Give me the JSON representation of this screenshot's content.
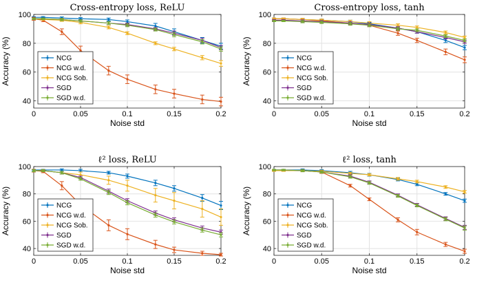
{
  "series_styles": [
    {
      "name": "NCG",
      "color": "#0072BD"
    },
    {
      "name": "NCG w.d.",
      "color": "#D95319"
    },
    {
      "name": "NCG Sob.",
      "color": "#EDB120"
    },
    {
      "name": "SGD",
      "color": "#7E2F8E"
    },
    {
      "name": "SGD w.d.",
      "color": "#77AC30"
    }
  ],
  "chart_data": [
    {
      "type": "line",
      "title": "Cross-entropy loss, ReLU",
      "xlabel": "Noise std",
      "ylabel": "Accuracy (%)",
      "xlim": [
        0,
        0.2
      ],
      "ylim": [
        35,
        100
      ],
      "xticks": [
        0,
        0.05,
        0.1,
        0.15,
        0.2
      ],
      "xtick_labels": [
        "0",
        "0.05",
        "0.1",
        "0.15",
        "0.2"
      ],
      "yticks": [
        40,
        60,
        80,
        100
      ],
      "ytick_labels": [
        "40",
        "60",
        "80",
        "100"
      ],
      "grid": true,
      "legend": "bottom-left",
      "x": [
        0,
        0.01,
        0.03,
        0.05,
        0.08,
        0.1,
        0.13,
        0.15,
        0.18,
        0.2
      ],
      "series": [
        {
          "name": "NCG",
          "values": [
            98,
            98,
            97.5,
            97,
            96.5,
            95,
            92,
            88,
            82,
            78
          ],
          "err": [
            0.5,
            0.5,
            0.8,
            0.8,
            1,
            1.2,
            1.8,
            2,
            2,
            2
          ]
        },
        {
          "name": "NCG w.d.",
          "values": [
            97,
            96,
            88,
            75,
            61,
            55,
            48,
            45,
            41,
            39.5
          ],
          "err": [
            1,
            1,
            2,
            3,
            3,
            3,
            3,
            3,
            3,
            3
          ]
        },
        {
          "name": "NCG Sob.",
          "values": [
            97,
            96.5,
            96,
            94.5,
            91,
            87,
            80,
            76,
            70,
            66
          ],
          "err": [
            0.5,
            0.5,
            0.8,
            1,
            1,
            1,
            1,
            1.2,
            1.5,
            2
          ]
        },
        {
          "name": "SGD",
          "values": [
            97,
            97,
            96.5,
            95.5,
            94,
            93,
            90,
            87,
            82,
            77
          ],
          "err": [
            0.5,
            0.5,
            0.8,
            0.8,
            1,
            1,
            1,
            1.5,
            1.5,
            1.5
          ]
        },
        {
          "name": "SGD w.d.",
          "values": [
            97,
            97,
            96.5,
            95.5,
            94,
            92.5,
            89.5,
            86,
            81,
            76
          ],
          "err": [
            0.5,
            0.5,
            0.8,
            0.8,
            1,
            1,
            1,
            1.5,
            1.5,
            1.5
          ]
        }
      ]
    },
    {
      "type": "line",
      "title": "Cross-entropy loss, tanh",
      "xlabel": "Noise std",
      "ylabel": "Accuracy (%)",
      "xlim": [
        0,
        0.2
      ],
      "ylim": [
        35,
        100
      ],
      "xticks": [
        0,
        0.05,
        0.1,
        0.15,
        0.2
      ],
      "xtick_labels": [
        "0",
        "0.05",
        "0.1",
        "0.15",
        "0.2"
      ],
      "yticks": [
        40,
        60,
        80,
        100
      ],
      "ytick_labels": [
        "40",
        "60",
        "80",
        "100"
      ],
      "grid": true,
      "legend": "bottom-left",
      "x": [
        0,
        0.01,
        0.03,
        0.05,
        0.08,
        0.1,
        0.13,
        0.15,
        0.18,
        0.2
      ],
      "series": [
        {
          "name": "NCG",
          "values": [
            97,
            97,
            96.5,
            96,
            95,
            93.5,
            90.5,
            88,
            82,
            77
          ],
          "err": [
            0.5,
            0.5,
            0.8,
            0.8,
            1,
            1,
            1,
            1,
            1.5,
            1.5
          ]
        },
        {
          "name": "NCG w.d.",
          "values": [
            97,
            97,
            96.5,
            95.5,
            94,
            92.5,
            87,
            82,
            74,
            68.5
          ],
          "err": [
            0.5,
            0.5,
            0.8,
            0.8,
            1,
            1,
            1.5,
            1.5,
            2,
            2
          ]
        },
        {
          "name": "NCG Sob.",
          "values": [
            97,
            97,
            96.5,
            96,
            95,
            94,
            92.5,
            91,
            87.5,
            84
          ],
          "err": [
            0.5,
            0.5,
            0.8,
            0.8,
            1,
            1,
            1,
            1,
            1,
            1
          ]
        },
        {
          "name": "SGD",
          "values": [
            96,
            96,
            95.5,
            95,
            94,
            93,
            90.5,
            88,
            84,
            81
          ],
          "err": [
            0.5,
            0.5,
            0.8,
            0.8,
            1,
            1,
            1,
            1,
            1,
            1
          ]
        },
        {
          "name": "SGD w.d.",
          "values": [
            95.5,
            95.5,
            95,
            94.5,
            93.5,
            92.5,
            90,
            89,
            85,
            82
          ],
          "err": [
            0.5,
            0.5,
            0.8,
            0.8,
            1,
            1,
            1,
            1,
            1,
            1
          ]
        }
      ]
    },
    {
      "type": "line",
      "title": "ℓ² loss, ReLU",
      "xlabel": "Noise std",
      "ylabel": "Accuracy (%)",
      "xlim": [
        0,
        0.2
      ],
      "ylim": [
        35,
        100
      ],
      "xticks": [
        0,
        0.05,
        0.1,
        0.15,
        0.2
      ],
      "xtick_labels": [
        "0",
        "0.05",
        "0.1",
        "0.15",
        "0.2"
      ],
      "yticks": [
        40,
        60,
        80,
        100
      ],
      "ytick_labels": [
        "40",
        "60",
        "80",
        "100"
      ],
      "grid": true,
      "legend": "bottom-left",
      "x": [
        0,
        0.01,
        0.03,
        0.05,
        0.08,
        0.1,
        0.13,
        0.15,
        0.18,
        0.2
      ],
      "series": [
        {
          "name": "NCG",
          "values": [
            97.5,
            97.5,
            97.5,
            97,
            95.5,
            93,
            88,
            84,
            77,
            71.5
          ],
          "err": [
            0.5,
            0.5,
            0.8,
            1,
            1,
            1.5,
            2,
            2,
            2.5,
            3
          ]
        },
        {
          "name": "NCG w.d.",
          "values": [
            97,
            96.5,
            86,
            72,
            57,
            50.5,
            43,
            39,
            36.5,
            35.5
          ],
          "err": [
            1,
            1,
            3,
            4,
            4,
            4,
            3,
            2,
            1.5,
            1
          ]
        },
        {
          "name": "NCG Sob.",
          "values": [
            97,
            97,
            95.5,
            94,
            90,
            86,
            79,
            75,
            69,
            63
          ],
          "err": [
            0.8,
            0.8,
            1,
            2,
            3,
            4,
            5,
            6,
            6,
            6
          ]
        },
        {
          "name": "SGD",
          "values": [
            97,
            97,
            95.5,
            92,
            82,
            75,
            66,
            61,
            55,
            52
          ],
          "err": [
            0.8,
            0.8,
            1,
            1,
            1.5,
            1.5,
            1.5,
            1.5,
            1.5,
            1.5
          ]
        },
        {
          "name": "SGD w.d.",
          "values": [
            97,
            97,
            95.5,
            91,
            81,
            73.5,
            64.5,
            59.5,
            53.5,
            50
          ],
          "err": [
            0.8,
            0.8,
            1,
            1,
            1.5,
            1.5,
            1.5,
            1.5,
            1.5,
            1.5
          ]
        }
      ]
    },
    {
      "type": "line",
      "title": "ℓ² loss, tanh",
      "xlabel": "Noise std",
      "ylabel": "Accuracy (%)",
      "xlim": [
        0,
        0.2
      ],
      "ylim": [
        35,
        100
      ],
      "xticks": [
        0,
        0.05,
        0.1,
        0.15,
        0.2
      ],
      "xtick_labels": [
        "0",
        "0.05",
        "0.1",
        "0.15",
        "0.2"
      ],
      "yticks": [
        40,
        60,
        80,
        100
      ],
      "ytick_labels": [
        "40",
        "60",
        "80",
        "100"
      ],
      "grid": true,
      "legend": "bottom-left",
      "x": [
        0,
        0.01,
        0.03,
        0.05,
        0.08,
        0.1,
        0.13,
        0.15,
        0.18,
        0.2
      ],
      "series": [
        {
          "name": "NCG",
          "values": [
            97.5,
            97.5,
            97.5,
            97,
            95.5,
            94,
            90.5,
            87,
            80,
            75
          ],
          "err": [
            0.5,
            0.5,
            0.8,
            0.8,
            1,
            1,
            1,
            1,
            1,
            1.2
          ]
        },
        {
          "name": "NCG w.d.",
          "values": [
            97,
            97,
            97,
            96,
            86,
            76,
            61,
            52,
            43,
            38
          ],
          "err": [
            0.5,
            0.5,
            0.8,
            1,
            1,
            1,
            1.5,
            2,
            1.5,
            1.5
          ]
        },
        {
          "name": "NCG Sob.",
          "values": [
            97,
            97,
            97,
            96.5,
            95,
            94,
            91,
            89,
            85,
            81.5
          ],
          "err": [
            0.5,
            0.5,
            0.5,
            0.8,
            0.8,
            0.8,
            1,
            1,
            1,
            1
          ]
        },
        {
          "name": "SGD",
          "values": [
            97.5,
            97.5,
            97,
            96,
            93,
            88.5,
            79,
            72,
            62,
            55.5
          ],
          "err": [
            0.5,
            0.5,
            0.8,
            0.8,
            1,
            1,
            1,
            1,
            1.2,
            1.5
          ]
        },
        {
          "name": "SGD w.d.",
          "values": [
            97.5,
            97.5,
            97,
            96,
            92.5,
            88,
            78.5,
            71.5,
            61.5,
            55
          ],
          "err": [
            0.5,
            0.5,
            0.8,
            0.8,
            1,
            1,
            1,
            1,
            1.2,
            1.5
          ]
        }
      ]
    }
  ]
}
